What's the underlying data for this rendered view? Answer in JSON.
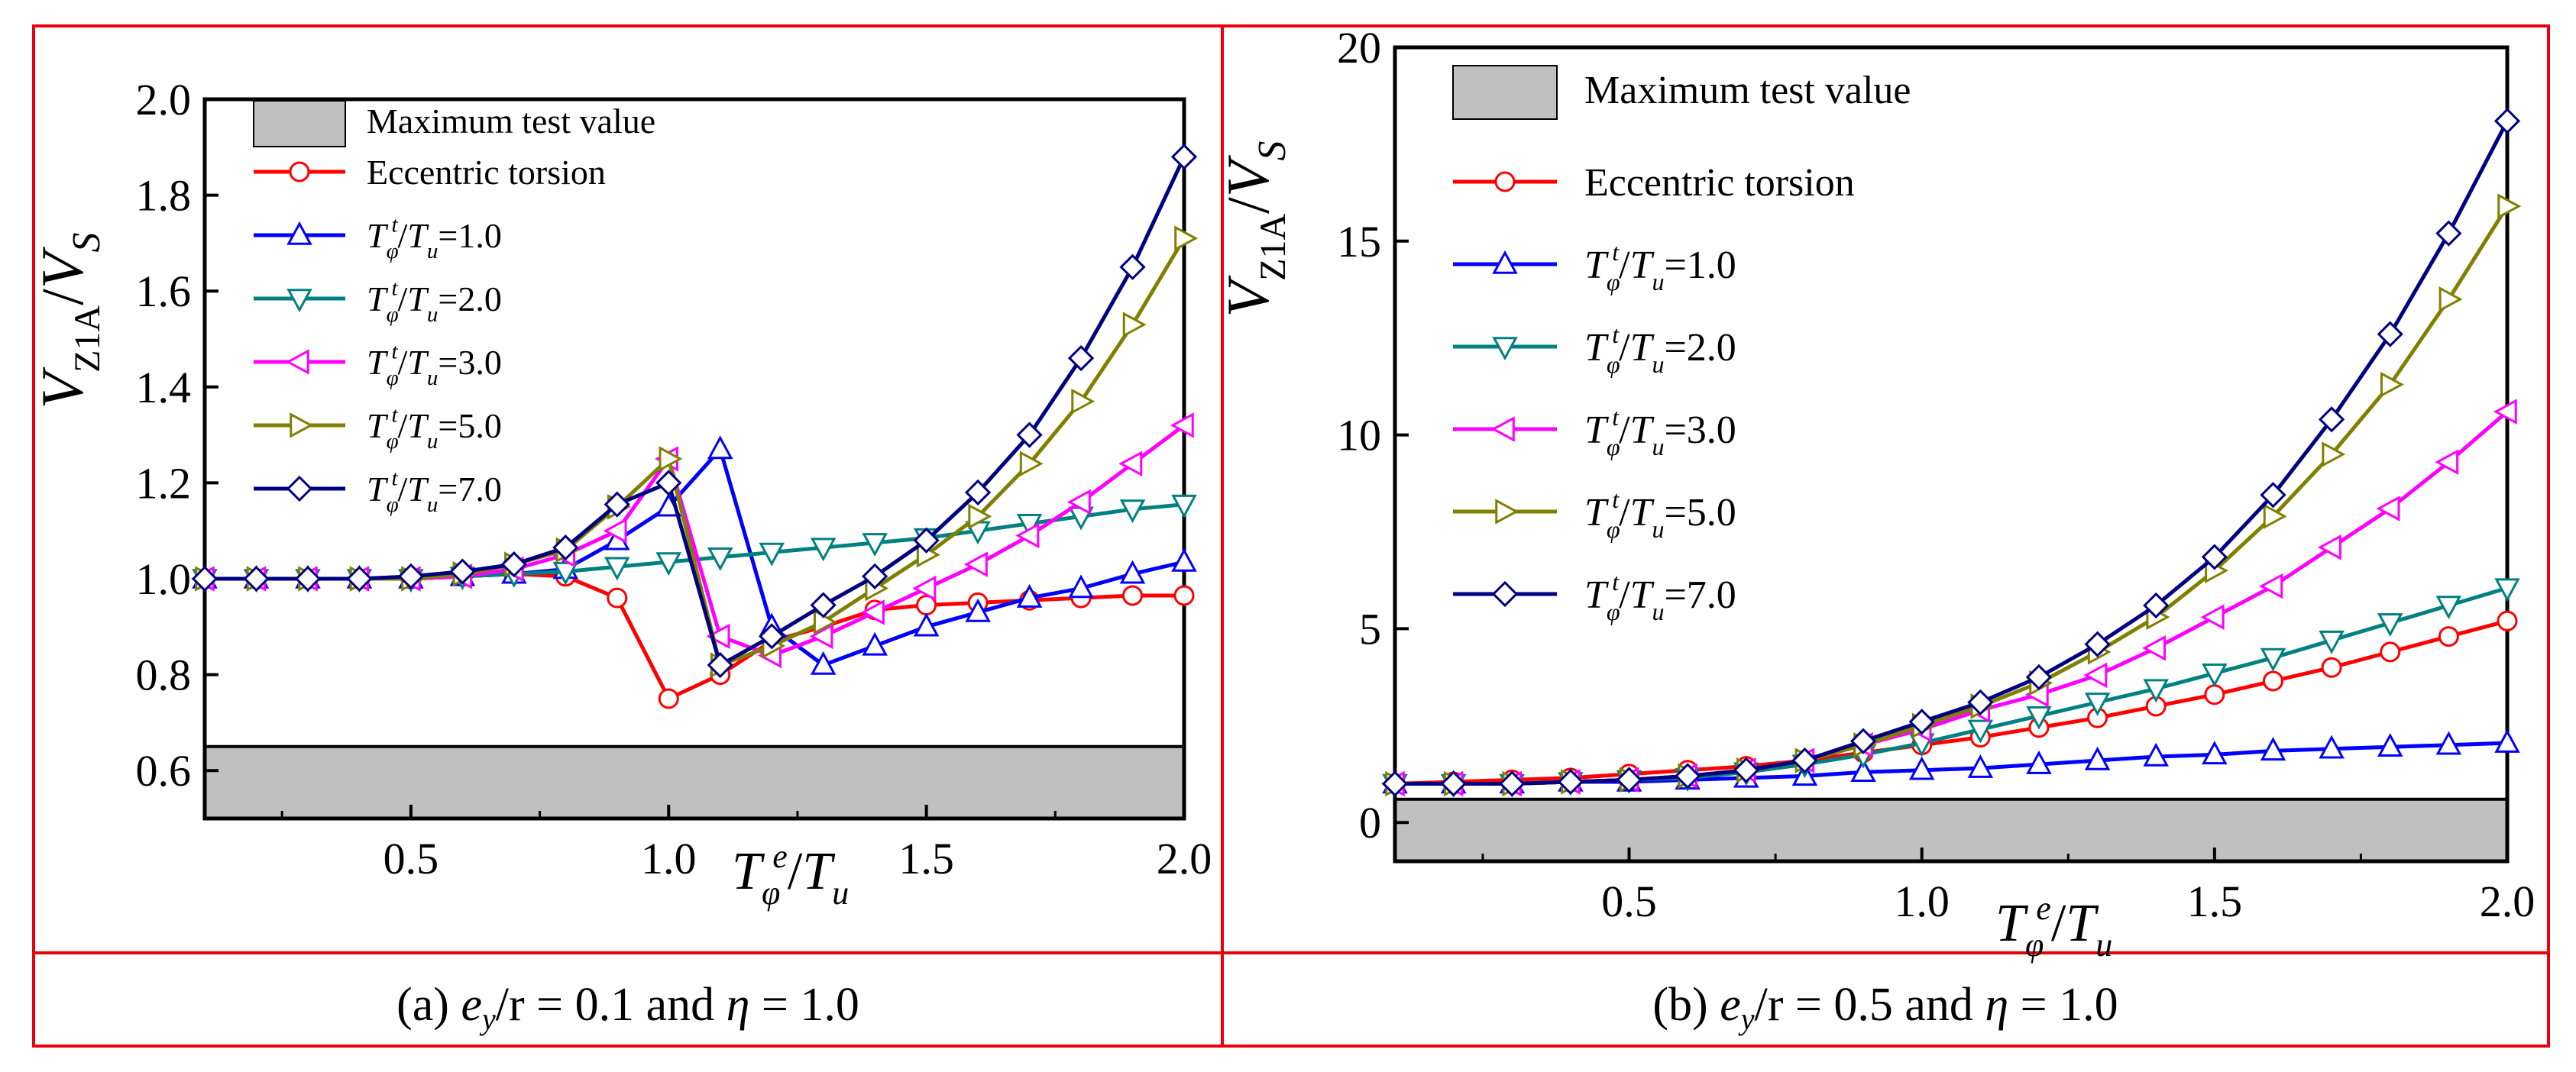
{
  "chart_data": [
    {
      "type": "line",
      "panel": "a",
      "caption": {
        "prefix": "(a) ",
        "var1": "e",
        "var1_sub": "y",
        "mid": "/r = 0.1 and ",
        "var2": "η",
        "suffix": " = 1.0"
      },
      "xlabel": {
        "T": "T",
        "sub": "φ",
        "sup": "e",
        "slash": "/",
        "T2": "T",
        "sub2": "u"
      },
      "ylabel": {
        "V": "V",
        "sub": "Z1A",
        "slash": "/",
        "V2": "V",
        "sub2": "S"
      },
      "xlim": [
        0.1,
        2.0
      ],
      "ylim": [
        0.5,
        2.0
      ],
      "xticks": [
        "0.5",
        "1.0",
        "1.5",
        "2.0"
      ],
      "yticks": [
        "0.6",
        "0.8",
        "1.0",
        "1.2",
        "1.4",
        "1.6",
        "1.8",
        "2.0"
      ],
      "band": {
        "label": "Maximum test value",
        "from": 0.5,
        "to": 0.65,
        "color": "#c0c0c0"
      },
      "x": [
        0.1,
        0.2,
        0.3,
        0.4,
        0.5,
        0.6,
        0.7,
        0.8,
        0.9,
        1.0,
        1.1,
        1.2,
        1.3,
        1.4,
        1.5,
        1.6,
        1.7,
        1.8,
        1.9,
        2.0
      ],
      "series": [
        {
          "name": "Eccentric torsion",
          "label": {
            "plain": "Eccentric torsion"
          },
          "color": "#ff0000",
          "marker": "circle",
          "values": [
            1.0,
            1.0,
            1.0,
            1.0,
            1.0,
            1.005,
            1.01,
            1.005,
            0.96,
            0.75,
            0.8,
            0.87,
            0.9,
            0.935,
            0.945,
            0.95,
            0.955,
            0.96,
            0.965,
            0.965
          ]
        },
        {
          "name": "T/Tu=1.0",
          "label": {
            "T": "T",
            "sub": "φ",
            "sup": "t",
            "slash": "/",
            "T2": "T",
            "sub2": "u",
            "eq": "=1.0"
          },
          "color": "#0000ff",
          "marker": "triangle-up",
          "values": [
            1.0,
            1.0,
            1.0,
            1.0,
            1.0,
            1.005,
            1.01,
            1.02,
            1.08,
            1.15,
            1.27,
            0.9,
            0.82,
            0.86,
            0.9,
            0.93,
            0.96,
            0.98,
            1.01,
            1.035
          ]
        },
        {
          "name": "T/Tu=2.0",
          "label": {
            "T": "T",
            "sub": "φ",
            "sup": "t",
            "slash": "/",
            "T2": "T",
            "sub2": "u",
            "eq": "=2.0"
          },
          "color": "#008080",
          "marker": "triangle-down",
          "values": [
            1.0,
            1.0,
            1.0,
            1.0,
            1.0,
            1.005,
            1.01,
            1.015,
            1.025,
            1.035,
            1.045,
            1.055,
            1.065,
            1.075,
            1.085,
            1.1,
            1.115,
            1.13,
            1.145,
            1.155
          ]
        },
        {
          "name": "T/Tu=3.0",
          "label": {
            "T": "T",
            "sub": "φ",
            "sup": "t",
            "slash": "/",
            "T2": "T",
            "sub2": "u",
            "eq": "=3.0"
          },
          "color": "#ff00ff",
          "marker": "triangle-left",
          "values": [
            1.0,
            1.0,
            1.0,
            1.0,
            1.0,
            1.005,
            1.02,
            1.05,
            1.1,
            1.25,
            0.88,
            0.84,
            0.88,
            0.93,
            0.98,
            1.03,
            1.09,
            1.16,
            1.24,
            1.32
          ]
        },
        {
          "name": "T/Tu=5.0",
          "label": {
            "T": "T",
            "sub": "φ",
            "sup": "t",
            "slash": "/",
            "T2": "T",
            "sub2": "u",
            "eq": "=5.0"
          },
          "color": "#808000",
          "marker": "triangle-right",
          "values": [
            1.0,
            1.0,
            1.0,
            1.0,
            1.0,
            1.01,
            1.03,
            1.06,
            1.15,
            1.25,
            0.82,
            0.86,
            0.91,
            0.98,
            1.05,
            1.13,
            1.24,
            1.37,
            1.53,
            1.71
          ]
        },
        {
          "name": "T/Tu=7.0",
          "label": {
            "T": "T",
            "sub": "φ",
            "sup": "t",
            "slash": "/",
            "T2": "T",
            "sub2": "u",
            "eq": "=7.0"
          },
          "color": "#000080",
          "marker": "diamond",
          "values": [
            1.0,
            1.0,
            1.0,
            1.0,
            1.005,
            1.015,
            1.03,
            1.065,
            1.155,
            1.2,
            0.82,
            0.88,
            0.945,
            1.005,
            1.08,
            1.18,
            1.3,
            1.46,
            1.65,
            1.88
          ]
        }
      ]
    },
    {
      "type": "line",
      "panel": "b",
      "caption": {
        "prefix": "(b) ",
        "var1": "e",
        "var1_sub": "y",
        "mid": "/r = 0.5 and ",
        "var2": "η",
        "suffix": " = 1.0"
      },
      "xlabel": {
        "T": "T",
        "sub": "φ",
        "sup": "e",
        "slash": "/",
        "T2": "T",
        "sub2": "u"
      },
      "ylabel": {
        "V": "V",
        "sub": "Z1A",
        "slash": "/",
        "V2": "V",
        "sub2": "S"
      },
      "xlim": [
        0.1,
        2.0
      ],
      "ylim": [
        -1,
        20
      ],
      "xticks": [
        "0.5",
        "1.0",
        "1.5",
        "2.0"
      ],
      "yticks": [
        "0",
        "5",
        "10",
        "15",
        "20"
      ],
      "band": {
        "label": "Maximum test value",
        "from": -1,
        "to": 0.6,
        "color": "#c0c0c0"
      },
      "x": [
        0.1,
        0.2,
        0.3,
        0.4,
        0.5,
        0.6,
        0.7,
        0.8,
        0.9,
        1.0,
        1.1,
        1.2,
        1.3,
        1.4,
        1.5,
        1.6,
        1.7,
        1.8,
        1.9,
        2.0
      ],
      "series": [
        {
          "name": "Eccentric torsion",
          "label": {
            "plain": "Eccentric torsion"
          },
          "color": "#ff0000",
          "marker": "circle",
          "values": [
            1.0,
            1.05,
            1.1,
            1.15,
            1.25,
            1.35,
            1.45,
            1.6,
            1.8,
            2.0,
            2.2,
            2.45,
            2.7,
            3.0,
            3.3,
            3.65,
            4.0,
            4.4,
            4.8,
            5.2
          ]
        },
        {
          "name": "T/Tu=1.0",
          "label": {
            "T": "T",
            "sub": "φ",
            "sup": "t",
            "slash": "/",
            "T2": "T",
            "sub2": "u",
            "eq": "=1.0"
          },
          "color": "#0000ff",
          "marker": "triangle-up",
          "values": [
            1.0,
            1.0,
            1.0,
            1.05,
            1.05,
            1.1,
            1.15,
            1.2,
            1.3,
            1.35,
            1.4,
            1.5,
            1.6,
            1.7,
            1.75,
            1.85,
            1.9,
            1.95,
            2.0,
            2.05
          ]
        },
        {
          "name": "T/Tu=2.0",
          "label": {
            "T": "T",
            "sub": "φ",
            "sup": "t",
            "slash": "/",
            "T2": "T",
            "sub2": "u",
            "eq": "=2.0"
          },
          "color": "#008080",
          "marker": "triangle-down",
          "values": [
            1.0,
            1.0,
            1.0,
            1.05,
            1.1,
            1.15,
            1.3,
            1.5,
            1.75,
            2.05,
            2.4,
            2.75,
            3.1,
            3.45,
            3.85,
            4.25,
            4.7,
            5.15,
            5.6,
            6.05
          ]
        },
        {
          "name": "T/Tu=3.0",
          "label": {
            "T": "T",
            "sub": "φ",
            "sup": "t",
            "slash": "/",
            "T2": "T",
            "sub2": "u",
            "eq": "=3.0"
          },
          "color": "#ff00ff",
          "marker": "triangle-left",
          "values": [
            1.0,
            1.0,
            1.0,
            1.05,
            1.1,
            1.2,
            1.35,
            1.6,
            2.0,
            2.4,
            2.9,
            3.3,
            3.8,
            4.5,
            5.3,
            6.1,
            7.1,
            8.1,
            9.3,
            10.6
          ]
        },
        {
          "name": "T/Tu=5.0",
          "label": {
            "T": "T",
            "sub": "φ",
            "sup": "t",
            "slash": "/",
            "T2": "T",
            "sub2": "u",
            "eq": "=5.0"
          },
          "color": "#808000",
          "marker": "triangle-right",
          "values": [
            1.0,
            1.0,
            1.0,
            1.05,
            1.1,
            1.2,
            1.35,
            1.6,
            2.0,
            2.5,
            3.0,
            3.6,
            4.4,
            5.3,
            6.5,
            7.9,
            9.5,
            11.3,
            13.5,
            15.9
          ]
        },
        {
          "name": "T/Tu=7.0",
          "label": {
            "T": "T",
            "sub": "φ",
            "sup": "t",
            "slash": "/",
            "T2": "T",
            "sub2": "u",
            "eq": "=7.0"
          },
          "color": "#000080",
          "marker": "diamond",
          "values": [
            1.0,
            1.0,
            1.0,
            1.05,
            1.1,
            1.2,
            1.35,
            1.6,
            2.1,
            2.6,
            3.1,
            3.75,
            4.6,
            5.6,
            6.85,
            8.45,
            10.4,
            12.6,
            15.2,
            18.1
          ]
        }
      ]
    }
  ]
}
